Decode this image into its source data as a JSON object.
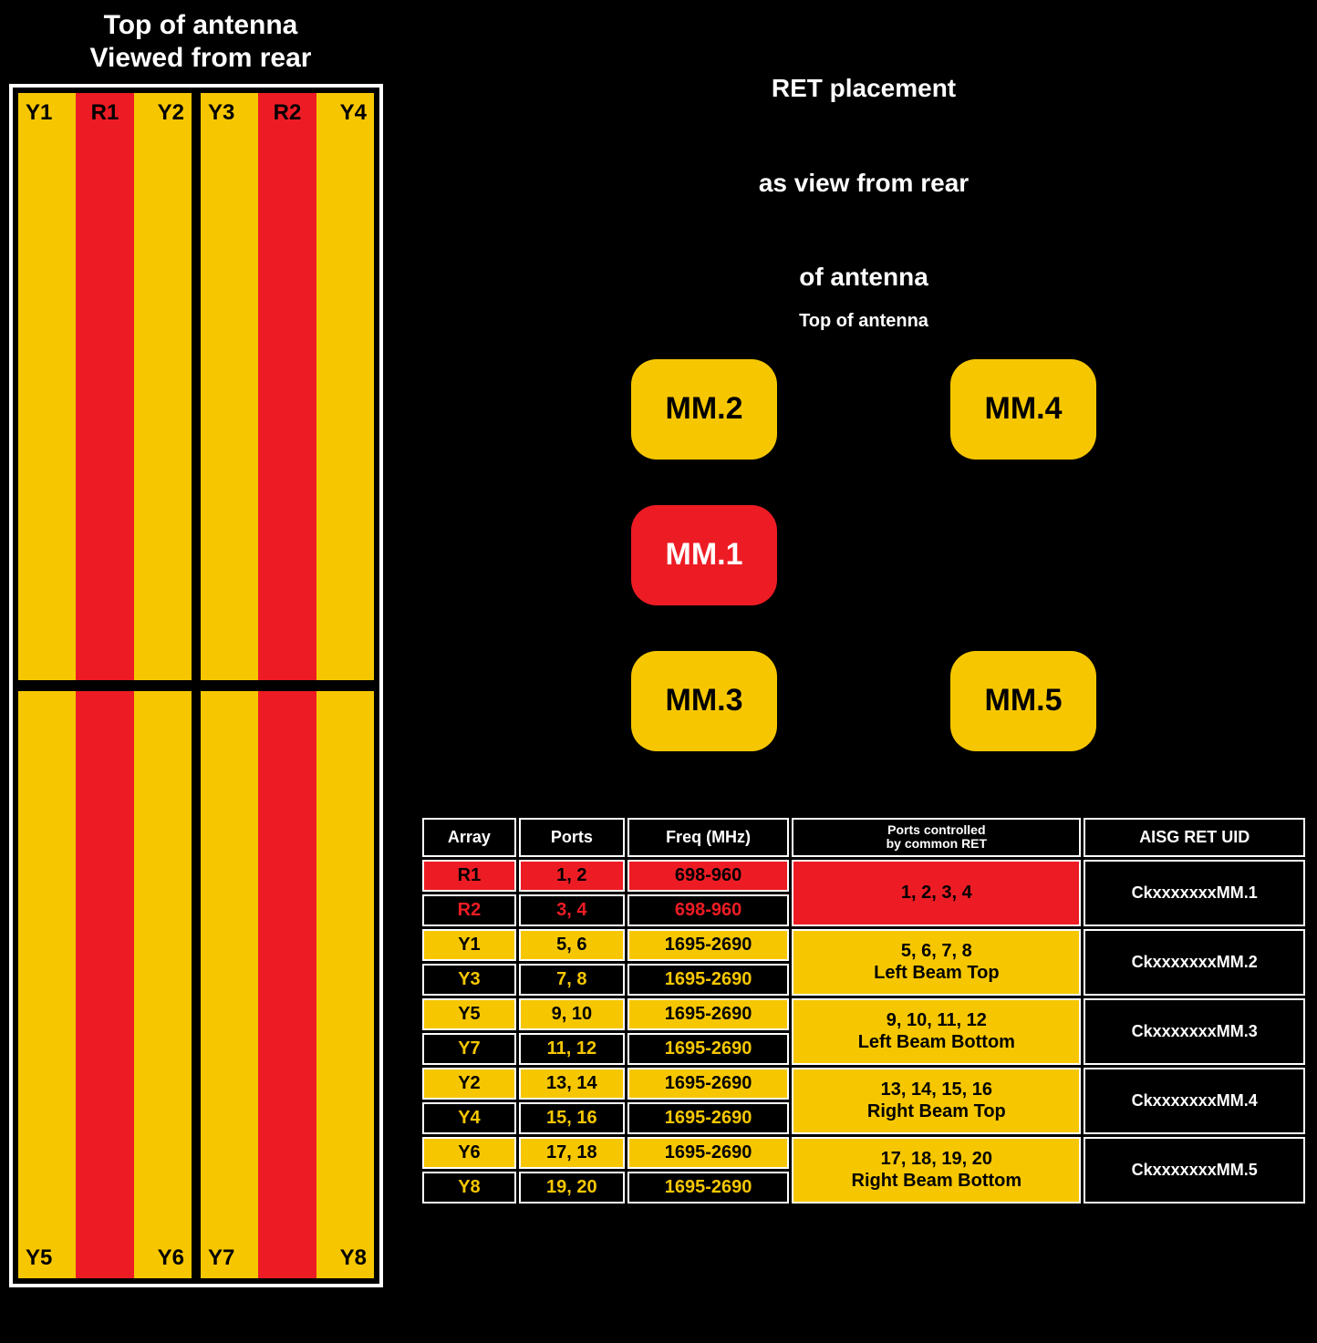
{
  "antenna": {
    "title_line1": "Top of antenna",
    "title_line2": "Viewed from rear",
    "colors": {
      "yellow": "#f6c700",
      "red": "#ed1c24",
      "frame": "#ffffff",
      "bg": "#000000"
    },
    "top_left_panel": {
      "left": "Y1",
      "center": "R1",
      "right": "Y2"
    },
    "top_right_panel": {
      "left": "Y3",
      "center": "R2",
      "right": "Y4"
    },
    "bottom_left_panel": {
      "left": "Y5",
      "right": "Y6"
    },
    "bottom_right_panel": {
      "left": "Y7",
      "right": "Y8"
    }
  },
  "ret": {
    "title_line1": "RET placement",
    "title_line2": "as view from rear",
    "title_line3": "of antenna",
    "subtitle": "Top of antenna",
    "modules": {
      "mm1": {
        "label": "MM.1",
        "color": "red"
      },
      "mm2": {
        "label": "MM.2",
        "color": "yellow"
      },
      "mm3": {
        "label": "MM.3",
        "color": "yellow"
      },
      "mm4": {
        "label": "MM.4",
        "color": "yellow"
      },
      "mm5": {
        "label": "MM.5",
        "color": "yellow"
      }
    }
  },
  "table": {
    "headers": {
      "array": "Array",
      "ports": "Ports",
      "freq": "Freq (MHz)",
      "controlled": "Ports controlled\nby common RET",
      "uid": "AISG RET UID"
    },
    "groups": [
      {
        "rows": [
          {
            "array": "R1",
            "ports": "1, 2",
            "freq": "698-960",
            "style": "red"
          },
          {
            "array": "R2",
            "ports": "3, 4",
            "freq": "698-960",
            "style": "black-red"
          }
        ],
        "controlled": "1, 2, 3, 4",
        "controlled_style": "red",
        "uid": "CkxxxxxxxMM.1"
      },
      {
        "rows": [
          {
            "array": "Y1",
            "ports": "5, 6",
            "freq": "1695-2690",
            "style": "yellow"
          },
          {
            "array": "Y3",
            "ports": "7, 8",
            "freq": "1695-2690",
            "style": "black-yellow"
          }
        ],
        "controlled": "5, 6, 7, 8\nLeft Beam Top",
        "controlled_style": "yellow",
        "uid": "CkxxxxxxxMM.2"
      },
      {
        "rows": [
          {
            "array": "Y5",
            "ports": "9, 10",
            "freq": "1695-2690",
            "style": "yellow"
          },
          {
            "array": "Y7",
            "ports": "11, 12",
            "freq": "1695-2690",
            "style": "black-yellow"
          }
        ],
        "controlled": "9, 10, 11, 12\nLeft Beam Bottom",
        "controlled_style": "yellow",
        "uid": "CkxxxxxxxMM.3"
      },
      {
        "rows": [
          {
            "array": "Y2",
            "ports": "13, 14",
            "freq": "1695-2690",
            "style": "yellow"
          },
          {
            "array": "Y4",
            "ports": "15, 16",
            "freq": "1695-2690",
            "style": "black-yellow"
          }
        ],
        "controlled": "13, 14, 15, 16\nRight Beam Top",
        "controlled_style": "yellow",
        "uid": "CkxxxxxxxMM.4"
      },
      {
        "rows": [
          {
            "array": "Y6",
            "ports": "17, 18",
            "freq": "1695-2690",
            "style": "yellow"
          },
          {
            "array": "Y8",
            "ports": "19, 20",
            "freq": "1695-2690",
            "style": "black-yellow"
          }
        ],
        "controlled": "17, 18, 19, 20\nRight Beam Bottom",
        "controlled_style": "yellow",
        "uid": "CkxxxxxxxMM.5"
      }
    ]
  }
}
